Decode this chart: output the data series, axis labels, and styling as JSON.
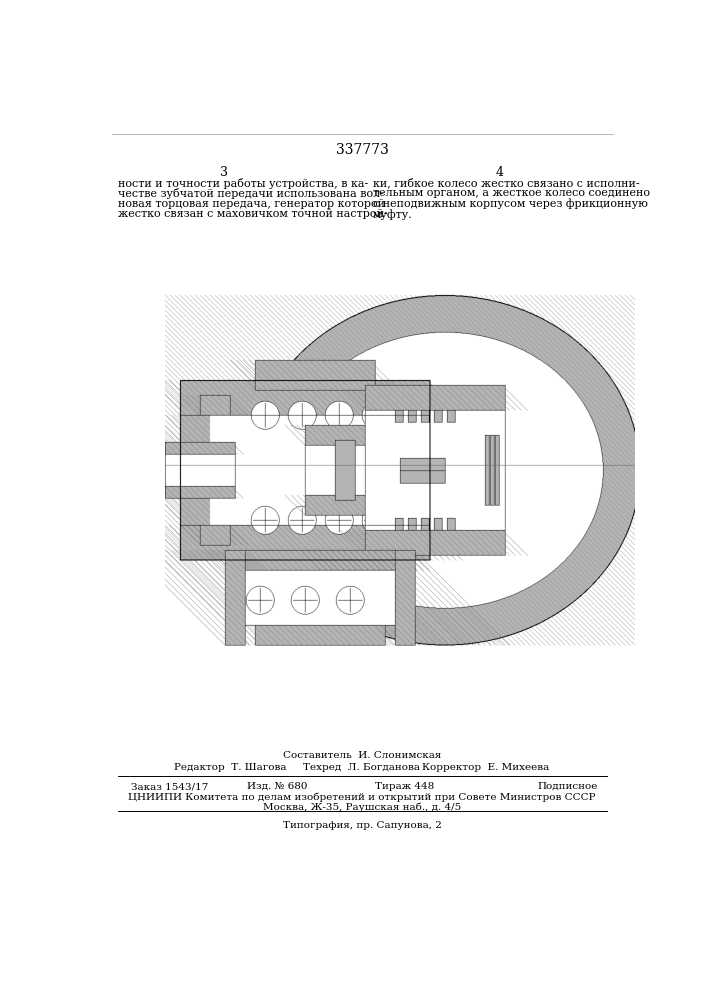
{
  "patent_number": "337773",
  "page_left": "3",
  "page_right": "4",
  "text_left_lines": [
    "ности и точности работы устройства, в ка-",
    "честве зубчатой передачи использована вол-",
    "новая торцовая передача, генератор которой",
    "жестко связан с маховичком точной настрой-"
  ],
  "text_right_lines": [
    "ки, гибкое колесо жестко связано с исполни-",
    "тельным органом, а жесткое колесо соединено",
    "с неподвижным корпусом через фрикционную",
    "муфту."
  ],
  "sestavitel": "Составитель  И. Слонимская",
  "editor": "Редактор  Т. Шагова",
  "tekhred": "Техред  Л. Богданова",
  "korrektor": "Корректор  Е. Михеева",
  "bottom_line1_parts": [
    "Заказ 1543/17",
    "Изд. № 680",
    "Тираж 448",
    "Подписное"
  ],
  "bottom_line2": "ЦНИИПИ Комитета по делам изобретений и открытий при Совете Министров СССР",
  "bottom_line3": "Москва, Ж-35, Раушская наб., д. 4/5",
  "bottom_line4": "Типография, пр. Сапунова, 2",
  "bg_color": "#ffffff"
}
